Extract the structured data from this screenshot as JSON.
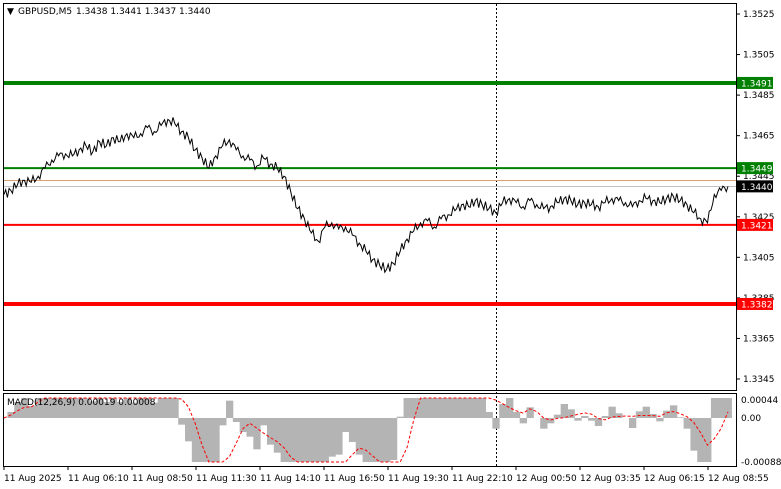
{
  "header": {
    "symbol": "GBPUSD,M5",
    "ohlc": "1.3438 1.3441 1.3437 1.3440",
    "caret": "▼"
  },
  "macd": {
    "label": "MACD(12,26,9) 0.00019 0.00008",
    "ticks": [
      "0.00044",
      "0.00",
      "-0.00088"
    ]
  },
  "colors": {
    "price_line": "#000000",
    "resistance": "#008000",
    "support": "#ff0000",
    "current_price_bg": "#000000",
    "macd_hist": "#b4b4b4",
    "macd_signal": "#ff0000",
    "grid": "#c0c0c0"
  },
  "chart_data": {
    "type": "line",
    "price_axis_ticks": [
      "1.3525",
      "1.3505",
      "1.3485",
      "1.3465",
      "1.3445",
      "1.3425",
      "1.3405",
      "1.3385",
      "1.3365",
      "1.3345"
    ],
    "time_axis_ticks": [
      "11 Aug 2025",
      "11 Aug 06:10",
      "11 Aug 08:50",
      "11 Aug 11:30",
      "11 Aug 14:10",
      "11 Aug 16:50",
      "11 Aug 19:30",
      "11 Aug 22:10",
      "12 Aug 00:50",
      "12 Aug 03:35",
      "12 Aug 06:15",
      "12 Aug 08:55"
    ],
    "levels": [
      {
        "label": "1.3491",
        "value": 1.3491,
        "color": "#008000",
        "thick": true
      },
      {
        "label": "1.3449",
        "value": 1.3449,
        "color": "#008000",
        "thick": false
      },
      {
        "label": "1.3421",
        "value": 1.3421,
        "color": "#ff0000",
        "thick": false
      },
      {
        "label": "1.3382",
        "value": 1.3382,
        "color": "#ff0000",
        "thick": true
      }
    ],
    "current_price": {
      "label": "1.3440",
      "value": 1.344
    },
    "price_series": [
      1.3436,
      1.3438,
      1.3441,
      1.3443,
      1.3442,
      1.3445,
      1.3449,
      1.3453,
      1.3455,
      1.3456,
      1.3455,
      1.3458,
      1.346,
      1.3457,
      1.3462,
      1.346,
      1.3464,
      1.3462,
      1.3466,
      1.3464,
      1.3466,
      1.3469,
      1.3467,
      1.347,
      1.3473,
      1.3471,
      1.3467,
      1.3464,
      1.3458,
      1.3454,
      1.3449,
      1.3455,
      1.346,
      1.3463,
      1.3458,
      1.3455,
      1.3453,
      1.345,
      1.3454,
      1.3451,
      1.3449,
      1.3445,
      1.3437,
      1.3429,
      1.3424,
      1.3417,
      1.3413,
      1.342,
      1.3422,
      1.3419,
      1.342,
      1.3416,
      1.3412,
      1.3408,
      1.3404,
      1.3401,
      1.3399,
      1.3402,
      1.3408,
      1.3414,
      1.3418,
      1.3422,
      1.3423,
      1.342,
      1.3424,
      1.3426,
      1.3428,
      1.3431,
      1.343,
      1.3433,
      1.3431,
      1.3429,
      1.3427,
      1.3432,
      1.3434,
      1.3432,
      1.343,
      1.3433,
      1.3431,
      1.3429,
      1.343,
      1.3432,
      1.3434,
      1.3433,
      1.3431,
      1.3432,
      1.3431,
      1.343,
      1.3432,
      1.3434,
      1.3433,
      1.3432,
      1.343,
      1.3433,
      1.3434,
      1.3433,
      1.3432,
      1.3434,
      1.3435,
      1.3433,
      1.3431,
      1.3427,
      1.3424,
      1.3422,
      1.3436,
      1.3438,
      1.344
    ]
  }
}
